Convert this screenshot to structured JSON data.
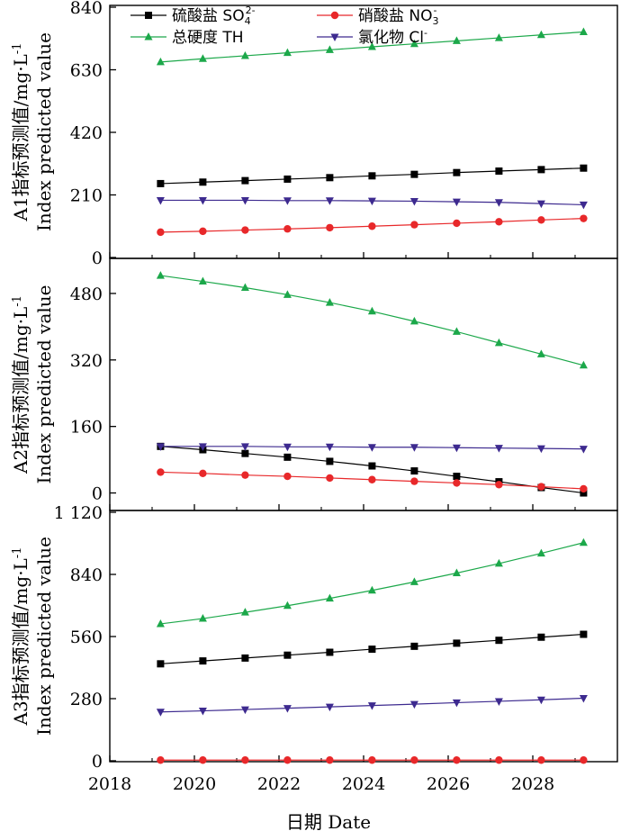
{
  "chart_data": [
    {
      "type": "line",
      "panel": "A1",
      "ylabel_cn": "A1指标预测值/mg·L",
      "ylabel_unit_sup": "-1",
      "ylabel_en": "Index predicted value",
      "ylim": [
        0,
        840
      ],
      "yticks": [
        "0",
        "210",
        "420",
        "630",
        "840"
      ],
      "ytick_values": [
        0,
        210,
        420,
        630,
        840
      ],
      "x": [
        2019.2,
        2020.2,
        2021.2,
        2022.2,
        2023.2,
        2024.2,
        2025.2,
        2026.2,
        2027.2,
        2028.2,
        2029.2
      ],
      "series": [
        {
          "key": "so4",
          "values": [
            248,
            253,
            258,
            263,
            268,
            274,
            279,
            285,
            290,
            295,
            300
          ]
        },
        {
          "key": "no3",
          "values": [
            85,
            88,
            92,
            96,
            100,
            105,
            110,
            115,
            120,
            126,
            131
          ]
        },
        {
          "key": "th",
          "values": [
            656,
            667,
            677,
            687,
            697,
            707,
            717,
            727,
            737,
            747,
            757
          ]
        },
        {
          "key": "cl",
          "values": [
            192,
            192,
            192,
            191,
            191,
            190,
            189,
            187,
            185,
            181,
            177
          ]
        }
      ]
    },
    {
      "type": "line",
      "panel": "A2",
      "ylabel_cn": "A2指标预测值/mg·L",
      "ylabel_unit_sup": "-1",
      "ylabel_en": "Index predicted value",
      "ylim": [
        -40,
        560
      ],
      "yticks": [
        "0",
        "160",
        "320",
        "480"
      ],
      "ytick_values": [
        0,
        160,
        320,
        480
      ],
      "x": [
        2019.2,
        2020.2,
        2021.2,
        2022.2,
        2023.2,
        2024.2,
        2025.2,
        2026.2,
        2027.2,
        2028.2,
        2029.2
      ],
      "series": [
        {
          "key": "so4",
          "values": [
            112,
            104,
            95,
            86,
            76,
            65,
            53,
            40,
            27,
            13,
            0
          ]
        },
        {
          "key": "no3",
          "values": [
            50,
            47,
            43,
            40,
            36,
            32,
            28,
            24,
            20,
            15,
            10
          ]
        },
        {
          "key": "th",
          "values": [
            523,
            509,
            494,
            477,
            458,
            437,
            413,
            388,
            361,
            334,
            307
          ]
        },
        {
          "key": "cl",
          "values": [
            112,
            112,
            112,
            111,
            111,
            110,
            110,
            109,
            108,
            107,
            106
          ]
        }
      ]
    },
    {
      "type": "line",
      "panel": "A3",
      "ylabel_cn": "A3指标预测值/mg·L",
      "ylabel_unit_sup": "-1",
      "ylabel_en": "Index predicted value",
      "ylim": [
        0,
        1120
      ],
      "yticks": [
        "0",
        "280",
        "560",
        "840",
        "1 120"
      ],
      "ytick_values": [
        0,
        280,
        560,
        840,
        1120
      ],
      "x": [
        2019.2,
        2020.2,
        2021.2,
        2022.2,
        2023.2,
        2024.2,
        2025.2,
        2026.2,
        2027.2,
        2028.2,
        2029.2
      ],
      "series": [
        {
          "key": "so4",
          "values": [
            437,
            450,
            463,
            476,
            489,
            503,
            516,
            530,
            543,
            557,
            570
          ]
        },
        {
          "key": "no3",
          "values": [
            3,
            3,
            3,
            3,
            3,
            3,
            3,
            3,
            3,
            3,
            3
          ]
        },
        {
          "key": "th",
          "values": [
            617,
            641,
            669,
            699,
            732,
            768,
            806,
            846,
            889,
            935,
            983
          ]
        },
        {
          "key": "cl",
          "values": [
            220,
            225,
            231,
            237,
            243,
            249,
            255,
            262,
            268,
            275,
            282
          ]
        }
      ]
    }
  ],
  "series_styles": {
    "so4": {
      "name": "硫酸盐 SO",
      "sub": "4",
      "sup": "2-",
      "color": "#000000",
      "marker": "square"
    },
    "no3": {
      "name": "硝酸盐 NO",
      "sub": "3",
      "sup": "-",
      "color": "#e8282a",
      "marker": "circle"
    },
    "th": {
      "name": "总硬度 TH",
      "sub": "",
      "sup": "",
      "color": "#1ca84a",
      "marker": "triangle-up"
    },
    "cl": {
      "name": "氯化物 Cl",
      "sub": "",
      "sup": "-",
      "color": "#3d2a8f",
      "marker": "triangle-down"
    }
  },
  "x_axis": {
    "xlim": [
      2018,
      2030
    ],
    "ticks": [
      "2018",
      "2020",
      "2022",
      "2024",
      "2026",
      "2028"
    ],
    "tick_values": [
      2018,
      2020,
      2022,
      2024,
      2026,
      2028
    ],
    "minor_tick_values": [
      2019,
      2021,
      2023,
      2025,
      2027,
      2029
    ],
    "label": "日期 Date"
  },
  "legend": {
    "placement": "top, inside panel A1, two columns"
  }
}
